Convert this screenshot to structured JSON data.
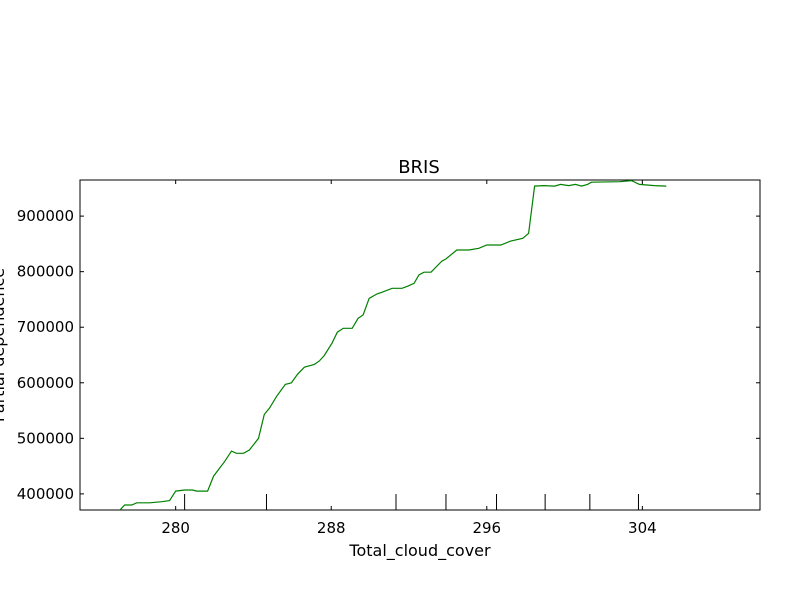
{
  "chart_data": {
    "type": "line",
    "title": "BRIS",
    "x_label": "Total_cloud_cover",
    "y_label": "Partial dependence",
    "color": "#008000",
    "x": [
      277.13,
      277.38,
      277.74,
      278.0,
      278.67,
      279.28,
      279.69,
      280.0,
      280.46,
      280.87,
      281.08,
      281.64,
      281.95,
      282.51,
      282.87,
      283.13,
      283.49,
      283.79,
      284.26,
      284.56,
      284.82,
      285.18,
      285.64,
      285.95,
      286.26,
      286.62,
      287.13,
      287.38,
      287.64,
      288.05,
      288.31,
      288.62,
      289.08,
      289.38,
      289.64,
      289.95,
      290.36,
      290.62,
      291.13,
      291.64,
      291.95,
      292.26,
      292.51,
      292.77,
      293.13,
      293.69,
      293.9,
      294.46,
      295.08,
      295.59,
      296.0,
      296.26,
      296.72,
      297.23,
      297.85,
      298.15,
      298.46,
      298.92,
      299.49,
      299.79,
      300.21,
      300.56,
      300.87,
      301.18,
      301.38,
      302.82,
      303.44,
      303.85,
      304.62,
      305.23
    ],
    "values": [
      371000,
      380000,
      380000,
      384000,
      384000,
      386000,
      388000,
      405000,
      407000,
      407000,
      405000,
      405000,
      432000,
      458000,
      477000,
      473000,
      473000,
      479000,
      500000,
      543000,
      554000,
      575000,
      597000,
      600000,
      615000,
      628000,
      633000,
      639000,
      649000,
      672000,
      691000,
      698000,
      698000,
      716000,
      722000,
      752000,
      760000,
      763000,
      770000,
      770000,
      774000,
      779000,
      794000,
      799000,
      799000,
      819000,
      823000,
      839000,
      839000,
      842000,
      848000,
      848000,
      848000,
      855000,
      860000,
      869000,
      954000,
      955000,
      954000,
      957000,
      955000,
      957000,
      954000,
      957000,
      961000,
      962000,
      964000,
      957000,
      955000,
      954000
    ],
    "deciles": [
      280.46,
      284.67,
      291.33,
      293.9,
      296.5,
      299.0,
      301.3,
      303.8
    ],
    "xlim": [
      275.08,
      310.05
    ],
    "ylim": [
      371000,
      965000
    ],
    "xticks": [
      280,
      288,
      296,
      304
    ],
    "yticks": [
      400000,
      500000,
      600000,
      700000,
      800000,
      900000
    ]
  }
}
